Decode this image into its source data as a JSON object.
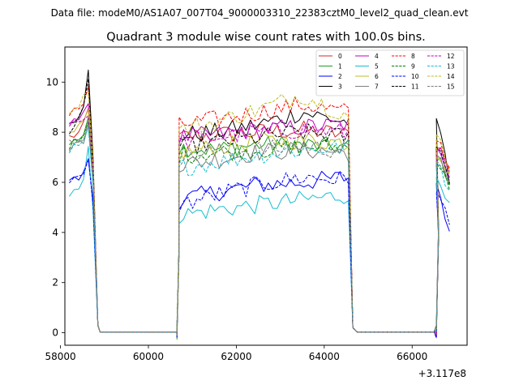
{
  "chart_data": {
    "type": "line",
    "suptitle": "Data file: modeM0/AS1A07_007T04_9000003310_22383cztM0_level2_quad_clean.evt",
    "title": "Quadrant 3 module wise count rates with 100.0s bins.",
    "xlabel": "",
    "ylabel": "",
    "x_offset_label": "+3.117e8",
    "xlim": [
      58100,
      67250
    ],
    "ylim": [
      -0.5,
      11.4
    ],
    "x_ticks": [
      58000,
      60000,
      62000,
      64000,
      66000
    ],
    "y_ticks": [
      0,
      2,
      4,
      6,
      8,
      10
    ],
    "legend_position": "upper-right",
    "segments": [
      {
        "start": 58200,
        "end": 58850,
        "n": 7,
        "tail_start": 58750,
        "tail": [
          [
            58850,
            0.3
          ],
          [
            58900,
            0.03
          ]
        ]
      },
      {
        "start": 60700,
        "end": 64550,
        "n": 39,
        "lead": [
          [
            60650,
            0.03
          ],
          [
            60700,
            3.5
          ]
        ],
        "tail_start": 64550,
        "tail": [
          [
            64650,
            0.2
          ],
          [
            64750,
            0.03
          ]
        ]
      },
      {
        "start": 66550,
        "end": 66850,
        "n": 4,
        "lead": [
          [
            66550,
            0.03
          ],
          [
            66600,
            4.0
          ]
        ]
      }
    ],
    "gap_level": 0.03,
    "series": [
      {
        "name": "0",
        "color": "#d62728",
        "dash": "solid",
        "profile": [
          [
            58200,
            7.8
          ],
          [
            58350,
            7.9
          ],
          [
            58450,
            8.0
          ],
          [
            58550,
            8.3
          ],
          [
            58650,
            9.0
          ],
          [
            58750,
            6.0
          ],
          [
            60750,
            7.8
          ],
          [
            61500,
            7.9
          ],
          [
            62500,
            8.0
          ],
          [
            63500,
            8.1
          ],
          [
            64500,
            7.9
          ],
          [
            66600,
            7.5
          ],
          [
            66850,
            6.5
          ]
        ]
      },
      {
        "name": "1",
        "color": "#1f9e1f",
        "dash": "solid",
        "profile": [
          [
            58200,
            7.6
          ],
          [
            58350,
            7.8
          ],
          [
            58450,
            7.7
          ],
          [
            58550,
            8.0
          ],
          [
            58650,
            8.5
          ],
          [
            58750,
            6.0
          ],
          [
            60750,
            7.4
          ],
          [
            61500,
            7.3
          ],
          [
            62500,
            7.5
          ],
          [
            63500,
            7.5
          ],
          [
            64500,
            7.4
          ],
          [
            66600,
            7.0
          ],
          [
            66850,
            6.0
          ]
        ]
      },
      {
        "name": "2",
        "color": "#0000ff",
        "dash": "solid",
        "profile": [
          [
            58200,
            6.1
          ],
          [
            58350,
            6.1
          ],
          [
            58450,
            6.2
          ],
          [
            58550,
            6.3
          ],
          [
            58650,
            7.2
          ],
          [
            58750,
            5.0
          ],
          [
            60750,
            5.3
          ],
          [
            61500,
            5.6
          ],
          [
            62500,
            5.9
          ],
          [
            63500,
            6.0
          ],
          [
            64500,
            6.2
          ],
          [
            66600,
            5.8
          ],
          [
            66850,
            4.0
          ]
        ]
      },
      {
        "name": "3",
        "color": "#000000",
        "dash": "solid",
        "profile": [
          [
            58200,
            8.4
          ],
          [
            58350,
            8.6
          ],
          [
            58450,
            8.8
          ],
          [
            58550,
            9.3
          ],
          [
            58650,
            10.9
          ],
          [
            58750,
            6.5
          ],
          [
            60750,
            7.9
          ],
          [
            61500,
            8.0
          ],
          [
            62500,
            8.3
          ],
          [
            63500,
            8.8
          ],
          [
            64500,
            8.4
          ],
          [
            66600,
            8.5
          ],
          [
            66850,
            6.0
          ]
        ]
      },
      {
        "name": "4",
        "color": "#bf00bf",
        "dash": "solid",
        "profile": [
          [
            58200,
            8.5
          ],
          [
            58350,
            8.6
          ],
          [
            58450,
            8.5
          ],
          [
            58550,
            8.7
          ],
          [
            58650,
            9.0
          ],
          [
            58750,
            6.0
          ],
          [
            60750,
            7.8
          ],
          [
            61500,
            7.9
          ],
          [
            62500,
            8.1
          ],
          [
            63500,
            8.2
          ],
          [
            64500,
            8.3
          ],
          [
            66600,
            7.5
          ],
          [
            66850,
            6.3
          ]
        ]
      },
      {
        "name": "5",
        "color": "#17becf",
        "dash": "solid",
        "profile": [
          [
            58200,
            5.5
          ],
          [
            58350,
            5.8
          ],
          [
            58450,
            5.7
          ],
          [
            58550,
            6.5
          ],
          [
            58650,
            7.7
          ],
          [
            58750,
            4.5
          ],
          [
            60750,
            4.7
          ],
          [
            61500,
            4.9
          ],
          [
            62500,
            5.1
          ],
          [
            63500,
            5.3
          ],
          [
            64500,
            5.5
          ],
          [
            66600,
            6.3
          ],
          [
            66850,
            5.0
          ]
        ]
      },
      {
        "name": "6",
        "color": "#bcbd22",
        "dash": "solid",
        "profile": [
          [
            58200,
            7.9
          ],
          [
            58350,
            8.0
          ],
          [
            58450,
            8.2
          ],
          [
            58550,
            8.4
          ],
          [
            58650,
            8.9
          ],
          [
            58750,
            6.0
          ],
          [
            60750,
            7.2
          ],
          [
            61500,
            7.4
          ],
          [
            62500,
            7.6
          ],
          [
            63500,
            7.7
          ],
          [
            64500,
            7.6
          ],
          [
            66600,
            7.2
          ],
          [
            66850,
            6.2
          ]
        ]
      },
      {
        "name": "7",
        "color": "#7f7f7f",
        "dash": "solid",
        "profile": [
          [
            58200,
            7.4
          ],
          [
            58350,
            7.6
          ],
          [
            58450,
            7.5
          ],
          [
            58550,
            7.8
          ],
          [
            58650,
            8.3
          ],
          [
            58750,
            5.8
          ],
          [
            60750,
            6.7
          ],
          [
            61500,
            6.9
          ],
          [
            62500,
            7.2
          ],
          [
            63500,
            7.3
          ],
          [
            64500,
            7.2
          ],
          [
            66600,
            7.0
          ],
          [
            66850,
            6.0
          ]
        ]
      },
      {
        "name": "8",
        "color": "#ff0000",
        "dash": "dashed",
        "profile": [
          [
            58200,
            8.8
          ],
          [
            58350,
            9.0
          ],
          [
            58450,
            9.0
          ],
          [
            58550,
            9.2
          ],
          [
            58650,
            9.8
          ],
          [
            58750,
            6.5
          ],
          [
            60750,
            8.3
          ],
          [
            61500,
            8.5
          ],
          [
            62500,
            8.8
          ],
          [
            63500,
            9.1
          ],
          [
            64500,
            8.8
          ],
          [
            66600,
            7.8
          ],
          [
            66850,
            6.5
          ]
        ]
      },
      {
        "name": "9",
        "color": "#008000",
        "dash": "dashed",
        "profile": [
          [
            58200,
            7.5
          ],
          [
            58350,
            7.6
          ],
          [
            58450,
            7.6
          ],
          [
            58550,
            7.8
          ],
          [
            58650,
            8.4
          ],
          [
            58750,
            5.8
          ],
          [
            60750,
            7.1
          ],
          [
            61500,
            7.2
          ],
          [
            62500,
            7.3
          ],
          [
            63500,
            7.4
          ],
          [
            64500,
            7.4
          ],
          [
            66600,
            6.8
          ],
          [
            66850,
            5.8
          ]
        ]
      },
      {
        "name": "10",
        "color": "#0000ff",
        "dash": "dashed",
        "profile": [
          [
            58200,
            6.1
          ],
          [
            58350,
            6.2
          ],
          [
            58450,
            6.1
          ],
          [
            58550,
            6.2
          ],
          [
            58650,
            7.0
          ],
          [
            58750,
            4.8
          ],
          [
            60750,
            5.1
          ],
          [
            61500,
            5.5
          ],
          [
            62500,
            5.9
          ],
          [
            63500,
            6.2
          ],
          [
            64500,
            6.1
          ],
          [
            66600,
            5.5
          ],
          [
            66850,
            4.5
          ]
        ]
      },
      {
        "name": "11",
        "color": "#000000",
        "dash": "dashed",
        "profile": [
          [
            58200,
            8.0
          ],
          [
            58350,
            8.3
          ],
          [
            58450,
            8.5
          ],
          [
            58550,
            9.0
          ],
          [
            58650,
            10.2
          ],
          [
            58750,
            6.0
          ],
          [
            60750,
            7.4
          ],
          [
            61500,
            7.6
          ],
          [
            62500,
            7.8
          ],
          [
            63500,
            8.0
          ],
          [
            64500,
            7.8
          ],
          [
            66600,
            7.5
          ],
          [
            66850,
            6.0
          ]
        ]
      },
      {
        "name": "12",
        "color": "#bf00bf",
        "dash": "dashed",
        "profile": [
          [
            58200,
            8.4
          ],
          [
            58350,
            8.5
          ],
          [
            58450,
            8.4
          ],
          [
            58550,
            8.6
          ],
          [
            58650,
            8.8
          ],
          [
            58750,
            6.0
          ],
          [
            60750,
            7.6
          ],
          [
            61500,
            7.8
          ],
          [
            62500,
            8.0
          ],
          [
            63500,
            8.1
          ],
          [
            64500,
            8.0
          ],
          [
            66600,
            7.4
          ],
          [
            66850,
            6.3
          ]
        ]
      },
      {
        "name": "13",
        "color": "#17becf",
        "dash": "dashed",
        "profile": [
          [
            58200,
            7.2
          ],
          [
            58350,
            7.4
          ],
          [
            58450,
            7.3
          ],
          [
            58550,
            7.6
          ],
          [
            58650,
            8.2
          ],
          [
            58750,
            5.6
          ],
          [
            60750,
            6.6
          ],
          [
            61500,
            6.8
          ],
          [
            62500,
            7.1
          ],
          [
            63500,
            7.3
          ],
          [
            64500,
            7.4
          ],
          [
            66600,
            6.9
          ],
          [
            66850,
            5.5
          ]
        ]
      },
      {
        "name": "14",
        "color": "#bcbd22",
        "dash": "dashed",
        "profile": [
          [
            58200,
            8.9
          ],
          [
            58350,
            9.1
          ],
          [
            58450,
            9.2
          ],
          [
            58550,
            9.4
          ],
          [
            58650,
            9.9
          ],
          [
            58750,
            6.5
          ],
          [
            60750,
            8.1
          ],
          [
            61500,
            8.4
          ],
          [
            62500,
            8.9
          ],
          [
            63500,
            9.5
          ],
          [
            64500,
            8.7
          ],
          [
            66600,
            7.9
          ],
          [
            66850,
            6.5
          ]
        ]
      },
      {
        "name": "15",
        "color": "#7f7f7f",
        "dash": "dashed",
        "profile": [
          [
            58200,
            7.6
          ],
          [
            58350,
            7.7
          ],
          [
            58450,
            7.7
          ],
          [
            58550,
            7.9
          ],
          [
            58650,
            8.4
          ],
          [
            58750,
            5.8
          ],
          [
            60750,
            7.0
          ],
          [
            61500,
            7.2
          ],
          [
            62500,
            7.3
          ],
          [
            63500,
            7.4
          ],
          [
            64500,
            7.3
          ],
          [
            66600,
            7.0
          ],
          [
            66850,
            5.9
          ]
        ]
      }
    ]
  }
}
